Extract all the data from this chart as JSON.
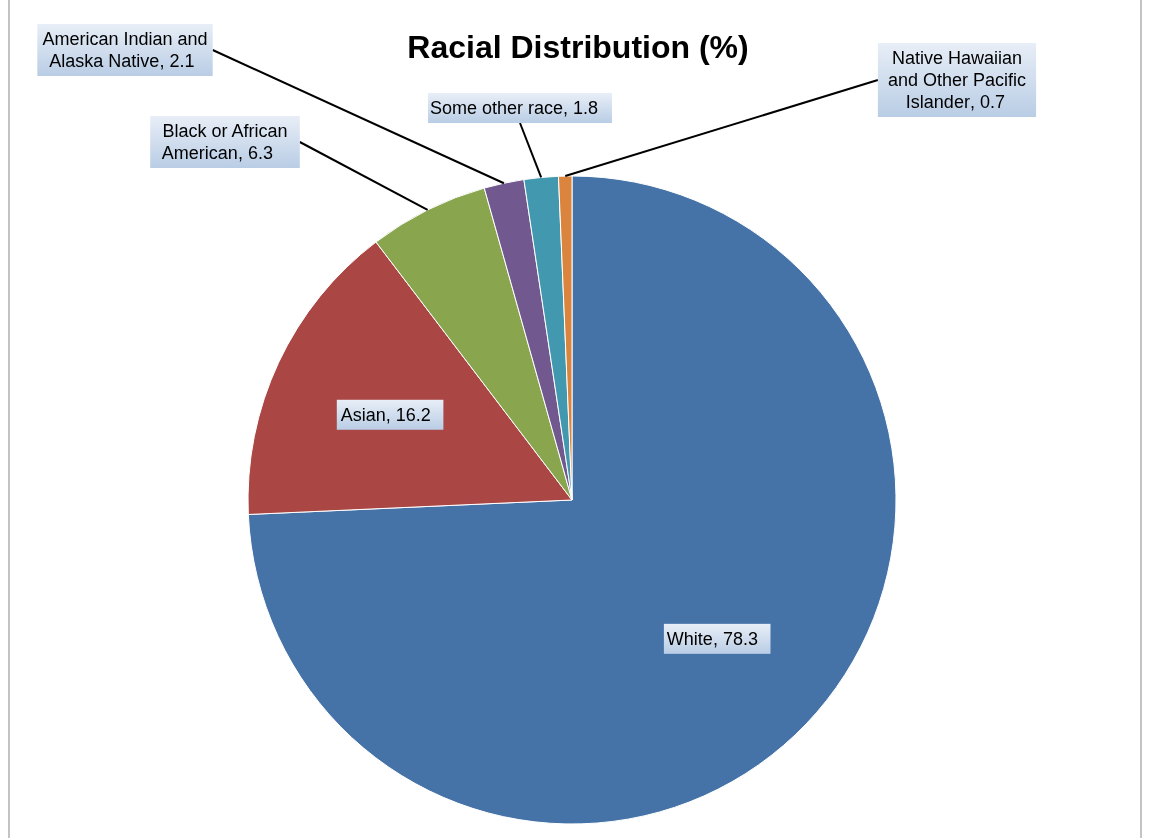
{
  "chart_data": {
    "type": "pie",
    "title": "Racial Distribution (%)",
    "categories": [
      "White",
      "Asian",
      "Black or African American",
      "American Indian and Alaska Native",
      "Some other race",
      "Native Hawaiian and Other Pacific Islander"
    ],
    "values": [
      78.3,
      16.2,
      6.3,
      2.1,
      1.8,
      0.7
    ],
    "colors": [
      "#4572a7",
      "#aa4643",
      "#89a54e",
      "#71588f",
      "#4198af",
      "#db843d"
    ],
    "value_labels": [
      ", 78.3",
      ", 16.2",
      ", 6.3",
      ", 2.1",
      ", 1.8",
      ", 0.7"
    ],
    "legend": false
  }
}
